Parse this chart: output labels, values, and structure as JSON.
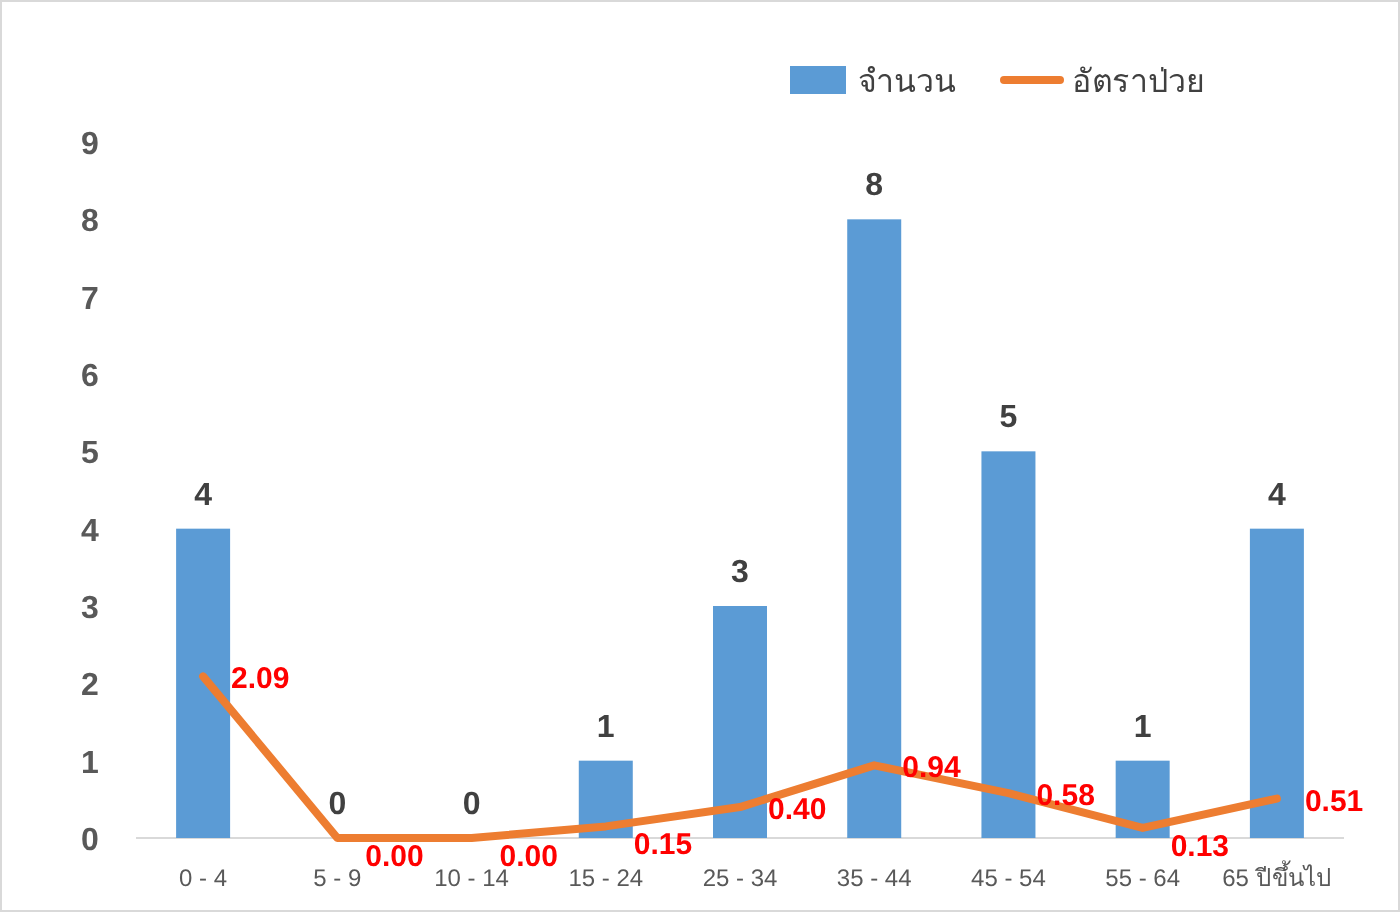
{
  "chart_data": {
    "type": "bar",
    "categories": [
      "0 - 4",
      "5 - 9",
      "10 - 14",
      "15 - 24",
      "25 - 34",
      "35 - 44",
      "45 - 54",
      "55 - 64",
      "65 ปีขึ้นไป"
    ],
    "series": [
      {
        "name": "จำนวน",
        "color": "#5b9bd5",
        "values": [
          4,
          0,
          0,
          1,
          3,
          8,
          5,
          1,
          4
        ]
      },
      {
        "name": "อัตราป่วย",
        "type": "line",
        "color": "#ed7d31",
        "values": [
          2.09,
          0.0,
          0.0,
          0.15,
          0.4,
          0.94,
          0.58,
          0.13,
          0.51
        ],
        "value_labels": [
          "2.09",
          "0.00",
          "0.00",
          "0.15",
          "0.40",
          "0.94",
          "0.58",
          "0.13",
          "0.51"
        ]
      }
    ],
    "ylim": [
      0,
      9
    ],
    "yticks": [
      0,
      1,
      2,
      3,
      4,
      5,
      6,
      7,
      8,
      9
    ],
    "data_labels": true,
    "legend": "top right",
    "marker": "none"
  }
}
